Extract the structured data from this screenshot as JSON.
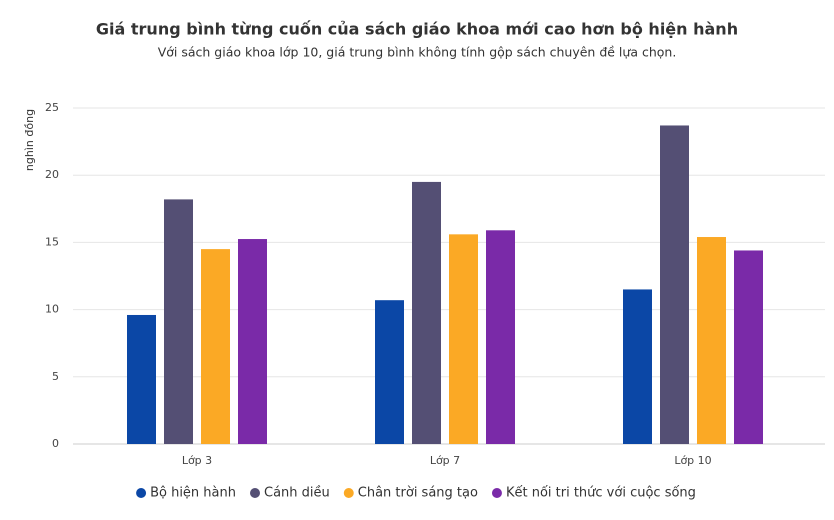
{
  "chart_data": {
    "type": "bar",
    "title": "Giá trung bình từng cuốn của sách giáo khoa mới cao hơn bộ hiện hành",
    "subtitle": "Với sách giáo khoa lớp 10, giá trung bình không tính gộp sách chuyên đề lựa chọn.",
    "y_label": "nghìn đồng",
    "categories": [
      "Lớp 3",
      "Lớp 7",
      "Lớp 10"
    ],
    "series": [
      {
        "name": "Bộ hiện hành",
        "color": "#0b47a6",
        "values": [
          9.6,
          10.7,
          11.5
        ]
      },
      {
        "name": "Cánh diều",
        "color": "#544f74",
        "values": [
          18.2,
          19.5,
          23.7
        ]
      },
      {
        "name": "Chân trời sáng tạo",
        "color": "#fba925",
        "values": [
          14.5,
          15.6,
          15.4
        ]
      },
      {
        "name": "Kết nối tri thức với cuộc sống",
        "color": "#7a2aa8",
        "values": [
          15.25,
          15.9,
          14.4
        ]
      }
    ],
    "ylim": [
      0,
      25
    ],
    "yticks": [
      0,
      5,
      10,
      15,
      20,
      25
    ],
    "grid": true,
    "legend": "bottom"
  }
}
